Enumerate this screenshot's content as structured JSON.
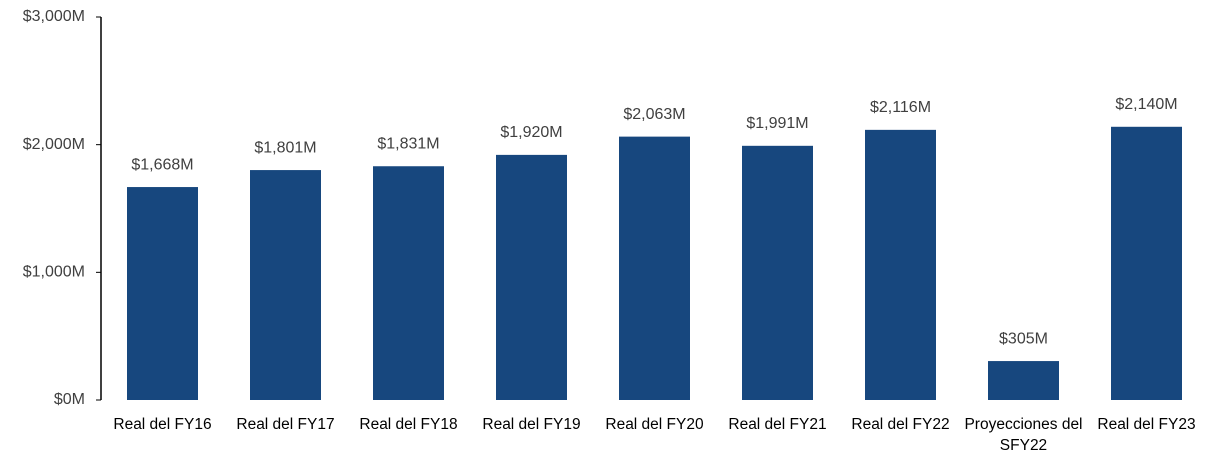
{
  "chart_data": {
    "type": "bar",
    "categories": [
      "Real del FY16",
      "Real del FY17",
      "Real del FY18",
      "Real del FY19",
      "Real del FY20",
      "Real del FY21",
      "Real del FY22",
      "Proyecciones del SFY22",
      "Real del FY23"
    ],
    "values": [
      1668,
      1801,
      1831,
      1920,
      2063,
      1991,
      2116,
      305,
      2140
    ],
    "value_labels": [
      "$1,668M",
      "$1,801M",
      "$1,831M",
      "$1,920M",
      "$2,063M",
      "$1,991M",
      "$2,116M",
      "$305M",
      "$2,140M"
    ],
    "color": "#17477e",
    "ylim": [
      0,
      3000
    ],
    "yticks": [
      {
        "value": 0,
        "label": "$0M"
      },
      {
        "value": 1000,
        "label": "$1,000M"
      },
      {
        "value": 2000,
        "label": "$2,000M"
      },
      {
        "value": 3000,
        "label": "$3,000M"
      }
    ],
    "grid": false
  }
}
